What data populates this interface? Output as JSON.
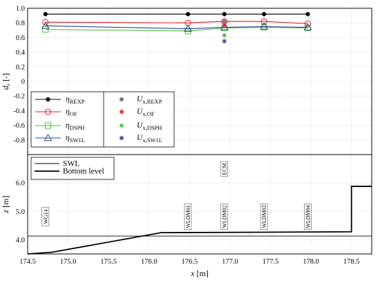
{
  "chart_data": [
    {
      "type": "line",
      "ylabel": "d_r [-]",
      "xlim": [
        174.5,
        178.75
      ],
      "ylim": [
        -1.0,
        1.0
      ],
      "yticks": [
        -0.8,
        -0.6,
        -0.4,
        -0.2,
        0,
        0.2,
        0.4,
        0.6,
        0.8,
        1
      ],
      "ytick_labels": [
        "-0.8",
        "-0.6",
        "-0.4",
        "-0.2",
        "0",
        "0.2",
        "0.4",
        "0.6",
        "0.8",
        "1.0"
      ],
      "grid": true,
      "legend_position": "lower-left",
      "x": [
        174.72,
        176.48,
        176.93,
        177.42,
        177.96
      ],
      "series": [
        {
          "name": "η_REXP",
          "main": "η",
          "sub": "REXP",
          "color": "#000000",
          "marker": "dot",
          "values": [
            0.92,
            0.92,
            0.92,
            0.92,
            0.92
          ]
        },
        {
          "name": "η_OF",
          "main": "η",
          "sub": "OF",
          "color": "#e8141c",
          "marker": "circle",
          "values": [
            0.81,
            0.8,
            0.82,
            0.82,
            0.79
          ]
        },
        {
          "name": "η_DSPH",
          "main": "η",
          "sub": "DSPH",
          "color": "#4dbb3a",
          "marker": "square",
          "values": [
            0.71,
            0.69,
            0.73,
            0.74,
            0.73
          ]
        },
        {
          "name": "η_SW1L",
          "main": "η",
          "sub": "SW1L",
          "color": "#2a4596",
          "marker": "triangle",
          "values": [
            0.76,
            0.72,
            0.74,
            0.75,
            0.74
          ]
        }
      ],
      "velocity_series": [
        {
          "name": "U_x,REXP",
          "main": "U",
          "sub": "x,REXP",
          "color": "#808080",
          "marker": "dot",
          "x": 176.93,
          "value": 0.82
        },
        {
          "name": "U_x,OF",
          "main": "U",
          "sub": "x,OF",
          "color": "#e8141c",
          "marker": "star",
          "x": 176.93,
          "value": 0.77
        },
        {
          "name": "U_x,DSPH",
          "main": "U",
          "sub": "x,DSPH",
          "color": "#4dbb3a",
          "marker": "star",
          "x": 176.93,
          "value": 0.63
        },
        {
          "name": "U_x,SW1L",
          "main": "U",
          "sub": "x,SW1L",
          "color": "#2a4596",
          "marker": "star",
          "x": 176.93,
          "value": 0.55
        }
      ]
    },
    {
      "type": "line",
      "xlabel": "x [m]",
      "ylabel": "z [m]",
      "xlim": [
        174.5,
        178.75
      ],
      "ylim": [
        3.5,
        7.0
      ],
      "xticks": [
        174.5,
        175.0,
        175.5,
        176.0,
        176.5,
        177.0,
        177.5,
        178.0,
        178.5
      ],
      "xtick_labels": [
        "174.5",
        "175.0",
        "175.5",
        "176.0",
        "176.5",
        "177.0",
        "177.5",
        "178.0",
        "178.5"
      ],
      "yticks": [
        4.0,
        5.0,
        6.0
      ],
      "ytick_labels": [
        "4.0",
        "5.0",
        "6.0"
      ],
      "grid": true,
      "legend_position": "top-left",
      "series": [
        {
          "name": "SWL",
          "color": "#000000",
          "x": [
            174.5,
            178.75
          ],
          "values": [
            4.13,
            4.13
          ]
        },
        {
          "name": "Bottom level",
          "color": "#000000",
          "x": [
            174.5,
            174.8,
            176.15,
            178.5,
            178.5,
            178.75
          ],
          "values": [
            3.5,
            3.56,
            4.25,
            4.28,
            5.88,
            5.88
          ]
        }
      ],
      "gauges": [
        {
          "label": "WG14",
          "x": 174.72
        },
        {
          "label": "WLDM01",
          "x": 176.48
        },
        {
          "label": "WLDM02",
          "x": 176.93
        },
        {
          "label": "WLDM03",
          "x": 177.42
        },
        {
          "label": "WLDM04",
          "x": 177.96
        }
      ],
      "annotations": [
        {
          "label": "ECM",
          "x": 176.93
        }
      ]
    }
  ]
}
